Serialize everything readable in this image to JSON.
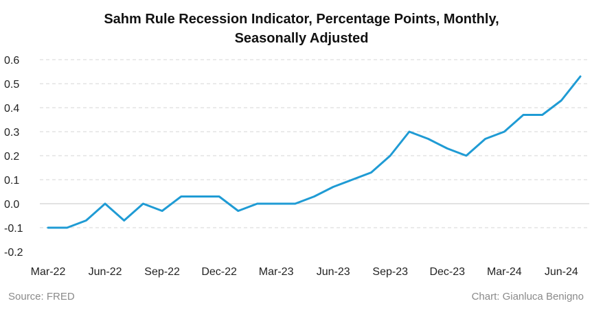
{
  "title_line1": "Sahm Rule Recession Indicator, Percentage Points, Monthly,",
  "title_line2": "Seasonally Adjusted",
  "source": "Source: FRED",
  "credit": "Chart: Gianluca Benigno",
  "colors": {
    "line": "#1f9bd4",
    "grid": "#d6d6d6",
    "axis": "#c4c4c4"
  },
  "chart_data": {
    "type": "line",
    "title": "Sahm Rule Recession Indicator, Percentage Points, Monthly, Seasonally Adjusted",
    "x": [
      "Mar-22",
      "Apr-22",
      "May-22",
      "Jun-22",
      "Jul-22",
      "Aug-22",
      "Sep-22",
      "Oct-22",
      "Nov-22",
      "Dec-22",
      "Jan-23",
      "Feb-23",
      "Mar-23",
      "Apr-23",
      "May-23",
      "Jun-23",
      "Jul-23",
      "Aug-23",
      "Sep-23",
      "Oct-23",
      "Nov-23",
      "Dec-23",
      "Jan-24",
      "Feb-24",
      "Mar-24",
      "Apr-24",
      "May-24",
      "Jun-24",
      "Jul-24"
    ],
    "series": [
      {
        "values": [
          -0.1,
          -0.1,
          -0.07,
          0.0,
          -0.07,
          0.0,
          -0.03,
          0.03,
          0.03,
          0.03,
          -0.03,
          0.0,
          0.0,
          0.0,
          0.03,
          0.07,
          0.1,
          0.13,
          0.2,
          0.3,
          0.27,
          0.23,
          0.2,
          0.27,
          0.3,
          0.37,
          0.37,
          0.43,
          0.53
        ]
      }
    ],
    "xtick_labels": [
      "Mar-22",
      "Jun-22",
      "Sep-22",
      "Dec-22",
      "Mar-23",
      "Jun-23",
      "Sep-23",
      "Dec-23",
      "Mar-24",
      "Jun-24"
    ],
    "yticks": [
      -0.2,
      -0.1,
      0.0,
      0.1,
      0.2,
      0.3,
      0.4,
      0.5,
      0.6
    ],
    "ytick_labels": [
      "-0.2",
      "-0.1",
      "0.0",
      "0.1",
      "0.2",
      "0.3",
      "0.4",
      "0.5",
      "0.6"
    ],
    "ylim": [
      -0.2,
      0.6
    ],
    "grid": true,
    "legend": "none"
  }
}
